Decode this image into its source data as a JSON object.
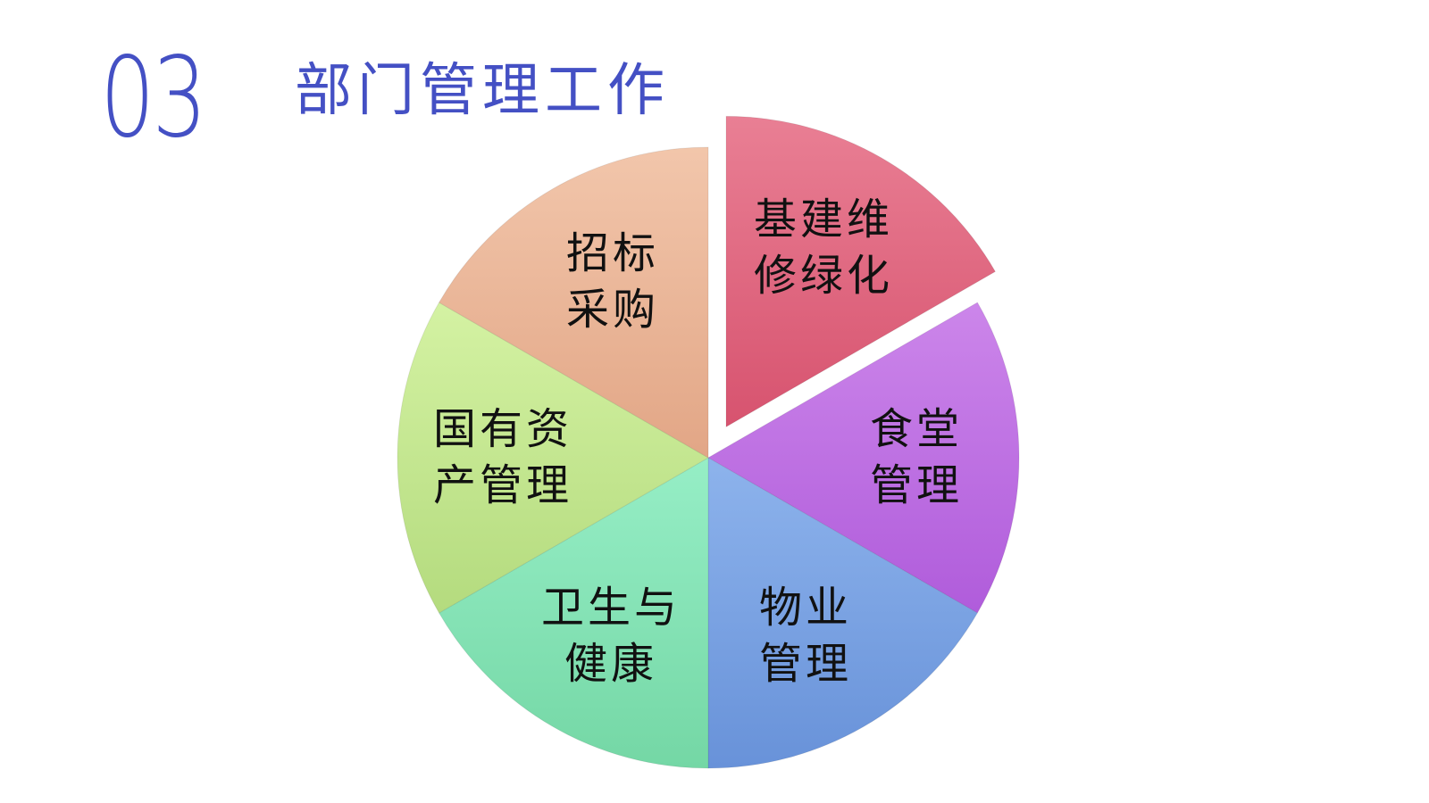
{
  "header": {
    "number": "03",
    "title": "部门管理工作"
  },
  "diagram": {
    "type": "pie",
    "slices": [
      {
        "line1": "基建维",
        "line2": "修绿化",
        "value": 1,
        "exploded": true,
        "colors": [
          "#e97f94",
          "#d7536f"
        ]
      },
      {
        "line1": "食堂",
        "line2": "管理",
        "value": 1,
        "colors": [
          "#cc86ea",
          "#b05cdb"
        ]
      },
      {
        "line1": "物业",
        "line2": "管理",
        "value": 1,
        "colors": [
          "#8db3ec",
          "#6892d9"
        ]
      },
      {
        "line1": "卫生与",
        "line2": "健康",
        "value": 1,
        "colors": [
          "#96eec6",
          "#74d7a5"
        ]
      },
      {
        "line1": "国有资",
        "line2": "产管理",
        "value": 1,
        "colors": [
          "#d4f2a3",
          "#b4db7e"
        ]
      },
      {
        "line1": "招标",
        "line2": "采购",
        "value": 1,
        "colors": [
          "#f2c6ab",
          "#e2a686"
        ]
      }
    ]
  }
}
